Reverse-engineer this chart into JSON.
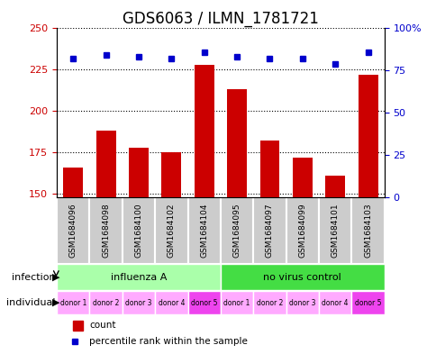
{
  "title": "GDS6063 / ILMN_1781721",
  "samples": [
    "GSM1684096",
    "GSM1684098",
    "GSM1684100",
    "GSM1684102",
    "GSM1684104",
    "GSM1684095",
    "GSM1684097",
    "GSM1684099",
    "GSM1684101",
    "GSM1684103"
  ],
  "counts": [
    166,
    188,
    178,
    175,
    228,
    213,
    182,
    172,
    161,
    222
  ],
  "percentiles": [
    82,
    84,
    83,
    82,
    86,
    83,
    82,
    82,
    79,
    86
  ],
  "ylim_left": [
    148,
    250
  ],
  "ylim_right": [
    0,
    100
  ],
  "yticks_left": [
    150,
    175,
    200,
    225,
    250
  ],
  "yticks_right": [
    0,
    25,
    50,
    75,
    100
  ],
  "bar_color": "#cc0000",
  "dot_color": "#0000cc",
  "infection_groups": [
    {
      "label": "influenza A",
      "start": 0,
      "end": 5,
      "color": "#aaffaa"
    },
    {
      "label": "no virus control",
      "start": 5,
      "end": 10,
      "color": "#44dd44"
    }
  ],
  "individual_labels": [
    "donor 1",
    "donor 2",
    "donor 3",
    "donor 4",
    "donor 5",
    "donor 1",
    "donor 2",
    "donor 3",
    "donor 4",
    "donor 5"
  ],
  "individual_colors": [
    "#ffaaff",
    "#ffaaff",
    "#ffaaff",
    "#ffaaff",
    "#ee44ee",
    "#ffaaff",
    "#ffaaff",
    "#ffaaff",
    "#ffaaff",
    "#ee44ee"
  ],
  "sample_bg_color": "#cccccc",
  "legend_count_color": "#cc0000",
  "legend_dot_color": "#0000cc",
  "grid_color": "#000000",
  "title_fontsize": 12,
  "tick_fontsize": 8,
  "label_fontsize": 8
}
